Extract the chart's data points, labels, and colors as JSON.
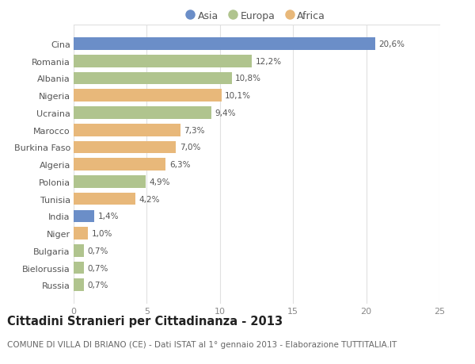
{
  "categories": [
    "Cina",
    "Romania",
    "Albania",
    "Nigeria",
    "Ucraina",
    "Marocco",
    "Burkina Faso",
    "Algeria",
    "Polonia",
    "Tunisia",
    "India",
    "Niger",
    "Bulgaria",
    "Bielorussia",
    "Russia"
  ],
  "values": [
    20.6,
    12.2,
    10.8,
    10.1,
    9.4,
    7.3,
    7.0,
    6.3,
    4.9,
    4.2,
    1.4,
    1.0,
    0.7,
    0.7,
    0.7
  ],
  "labels": [
    "20,6%",
    "12,2%",
    "10,8%",
    "10,1%",
    "9,4%",
    "7,3%",
    "7,0%",
    "6,3%",
    "4,9%",
    "4,2%",
    "1,4%",
    "1,0%",
    "0,7%",
    "0,7%",
    "0,7%"
  ],
  "continents": [
    "Asia",
    "Europa",
    "Europa",
    "Africa",
    "Europa",
    "Africa",
    "Africa",
    "Africa",
    "Europa",
    "Africa",
    "Asia",
    "Africa",
    "Europa",
    "Europa",
    "Europa"
  ],
  "colors": {
    "Asia": "#6b8ec8",
    "Europa": "#b0c48e",
    "Africa": "#e8b87a"
  },
  "legend_labels": [
    "Asia",
    "Europa",
    "Africa"
  ],
  "title": "Cittadini Stranieri per Cittadinanza - 2013",
  "subtitle": "COMUNE DI VILLA DI BRIANO (CE) - Dati ISTAT al 1° gennaio 2013 - Elaborazione TUTTITALIA.IT",
  "xlim": [
    0,
    25
  ],
  "xticks": [
    0,
    5,
    10,
    15,
    20,
    25
  ],
  "bg_color": "#ffffff",
  "grid_color": "#e0e0e0",
  "bar_height": 0.72,
  "title_fontsize": 10.5,
  "subtitle_fontsize": 7.5,
  "label_fontsize": 7.5,
  "tick_fontsize": 8,
  "legend_fontsize": 9
}
